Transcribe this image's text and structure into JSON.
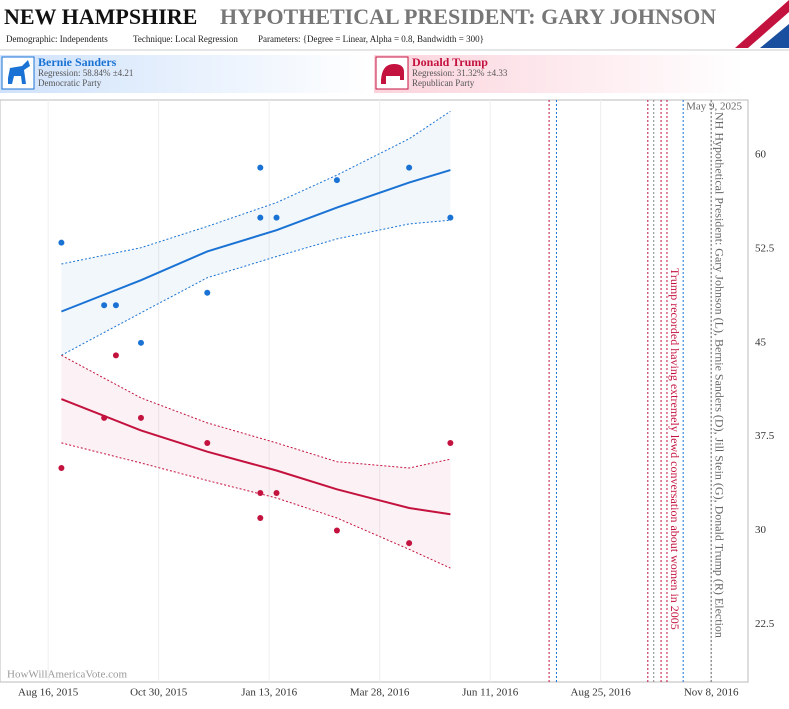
{
  "chart_data": {
    "type": "scatter",
    "title": "NEW HAMPSHIRE",
    "subtitle": "HYPOTHETICAL PRESIDENT: GARY JOHNSON",
    "demographic": "Demographic: Independents",
    "technique": "Technique: Local Regression",
    "parameters": "Parameters: {Degree = Linear, Alpha = 0.8, Bandwidth = 300}",
    "date_stamp": "May 9, 2025",
    "watermark": "HowWillAmericaVote.com",
    "xlim": [
      "2015-07-15",
      "2016-12-03"
    ],
    "xticks": [
      {
        "value": "2015-08-16",
        "label": "Aug 16, 2015"
      },
      {
        "value": "2015-10-30",
        "label": "Oct 30, 2015"
      },
      {
        "value": "2016-01-13",
        "label": "Jan 13, 2016"
      },
      {
        "value": "2016-03-28",
        "label": "Mar 28, 2016"
      },
      {
        "value": "2016-06-11",
        "label": "Jun 11, 2016"
      },
      {
        "value": "2016-08-25",
        "label": "Aug 25, 2016"
      },
      {
        "value": "2016-11-08",
        "label": "Nov 8, 2016"
      }
    ],
    "ylim": [
      17.9,
      64.4
    ],
    "yticks": [
      22.5,
      30,
      37.5,
      45,
      52.5,
      60
    ],
    "series": [
      {
        "name": "Bernie Sanders",
        "regression": "Regression: 58.84% ±4.21",
        "party": "Democratic Party",
        "color": "#1a73d4",
        "x": [
          "2015-08-25",
          "2015-09-23",
          "2015-10-01",
          "2015-10-18",
          "2015-12-02",
          "2016-01-07",
          "2016-01-07",
          "2016-01-18",
          "2016-02-28",
          "2016-04-17",
          "2016-05-15"
        ],
        "values": [
          53,
          48,
          48,
          45,
          49,
          59,
          55,
          55,
          58,
          59,
          55
        ],
        "fit_x": [
          "2015-08-25",
          "2015-10-18",
          "2015-12-02",
          "2016-01-18",
          "2016-02-28",
          "2016-04-17",
          "2016-05-15"
        ],
        "fit": [
          47.5,
          50,
          52.3,
          54,
          55.8,
          57.8,
          58.8
        ],
        "fit_upper": [
          51.3,
          52.6,
          54.3,
          56.2,
          58.4,
          61.3,
          63.5
        ],
        "fit_lower": [
          44,
          47.4,
          50.2,
          51.9,
          53.3,
          54.5,
          54.8
        ]
      },
      {
        "name": "Donald Trump",
        "regression": "Regression: 31.32% ±4.33",
        "party": "Republican Party",
        "color": "#c4123f",
        "x": [
          "2015-08-25",
          "2015-09-23",
          "2015-10-01",
          "2015-10-18",
          "2015-12-02",
          "2016-01-07",
          "2016-01-07",
          "2016-01-18",
          "2016-02-28",
          "2016-04-17",
          "2016-05-15"
        ],
        "values": [
          35,
          39,
          44,
          39,
          37,
          33,
          31,
          33,
          30,
          29,
          37
        ],
        "fit_x": [
          "2015-08-25",
          "2015-10-18",
          "2015-12-02",
          "2016-01-18",
          "2016-02-28",
          "2016-04-17",
          "2016-05-15"
        ],
        "fit": [
          40.5,
          38,
          36.3,
          34.8,
          33.3,
          31.8,
          31.3
        ],
        "fit_upper": [
          44,
          40.6,
          38.6,
          37,
          35.5,
          35,
          35.7
        ],
        "fit_lower": [
          37,
          35.4,
          34,
          32.6,
          31,
          28.5,
          27
        ]
      }
    ],
    "events": [
      {
        "x": "2016-07-21",
        "color": "#c4123f"
      },
      {
        "x": "2016-07-26",
        "color": "#1a73d4"
      },
      {
        "x": "2016-09-26",
        "color": "#c4123f"
      },
      {
        "x": "2016-09-30",
        "color": "#888888"
      },
      {
        "x": "2016-10-05",
        "color": "#c4123f"
      },
      {
        "x": "2016-10-09",
        "color": "#c4123f",
        "label": "Trump recorded having extremely lewd conversation about women in 2005"
      },
      {
        "x": "2016-10-20",
        "color": "#1a73d4"
      },
      {
        "x": "2016-11-08",
        "color": "#666666",
        "label": "NH Hypothetical President: Gary Johnson (L), Bernie Sanders (D), Jill Stein (G), Donald Trump (R) Election"
      }
    ]
  }
}
